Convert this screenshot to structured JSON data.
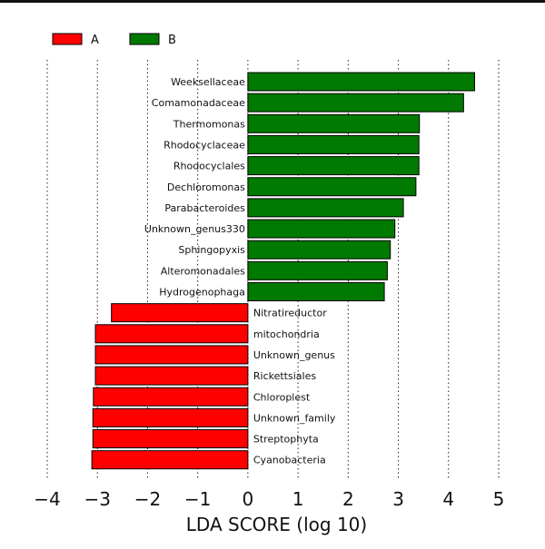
{
  "chart_data": {
    "type": "bar",
    "orientation": "horizontal",
    "xlabel": "LDA SCORE (log 10)",
    "xlim": [
      -4,
      5
    ],
    "xticks": [
      -4,
      -3,
      -2,
      -1,
      0,
      1,
      2,
      3,
      4,
      5
    ],
    "xtick_labels": [
      "−4",
      "−3",
      "−2",
      "−1",
      "0",
      "1",
      "2",
      "3",
      "4",
      "5"
    ],
    "grid": "vertical dotted at integer ticks",
    "legend_placement": "top-left",
    "legend": [
      {
        "name": "A",
        "color": "#ff0000"
      },
      {
        "name": "B",
        "color": "#007a00"
      }
    ],
    "series": [
      {
        "name": "B",
        "color": "#007a00",
        "label_side": "left",
        "categories": [
          "Weeksellaceae",
          "Comamonadaceae",
          "Thermomonas",
          "Rhodocyclaceae",
          "Rhodocyclales",
          "Dechloromonas",
          "Parabacteroides",
          "Unknown_genus330",
          "Sphingopyxis",
          "Alteromonadales",
          "Hydrogenophaga"
        ],
        "values": [
          4.52,
          4.3,
          3.42,
          3.41,
          3.41,
          3.35,
          3.1,
          2.93,
          2.84,
          2.78,
          2.72
        ]
      },
      {
        "name": "A",
        "color": "#ff0000",
        "label_side": "right",
        "categories": [
          "Nitratireductor",
          "mitochondria",
          "Unknown_genus",
          "Rickettsiales",
          "Chloroplest",
          "Unknown_family",
          "Streptophyta",
          "Cyanobacteria"
        ],
        "values": [
          -2.72,
          -3.04,
          -3.04,
          -3.04,
          -3.08,
          -3.09,
          -3.09,
          -3.11
        ]
      }
    ]
  }
}
